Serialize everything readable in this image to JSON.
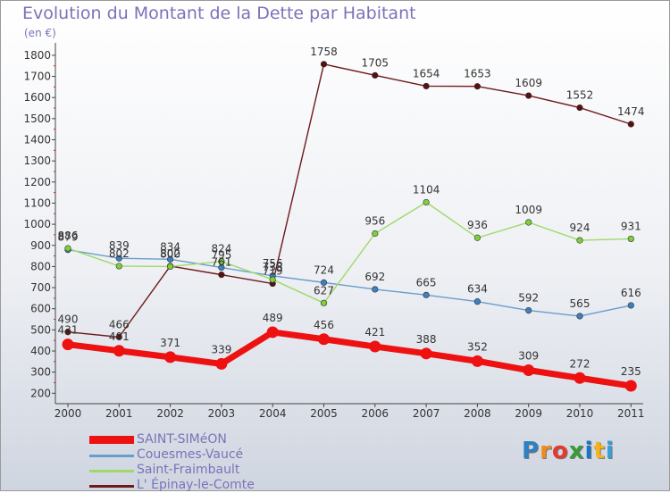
{
  "title": "Evolution du Montant de la Dette par Habitant",
  "unit": "(en €)",
  "logo": {
    "text": "Proxiti",
    "letters": [
      "P",
      "r",
      "o",
      "x",
      "i",
      "t",
      "i"
    ],
    "colors": [
      "#2f7fc1",
      "#f08a1e",
      "#e23b2e",
      "#3a9a3a",
      "#1a74c8",
      "#f3b31c",
      "#35a0d8"
    ]
  },
  "chart_data": {
    "type": "line",
    "x": [
      "2000",
      "2001",
      "2002",
      "2003",
      "2004",
      "2005",
      "2006",
      "2007",
      "2008",
      "2009",
      "2010",
      "2011"
    ],
    "y_ticks": [
      "200",
      "300",
      "400",
      "500",
      "600",
      "700",
      "800",
      "900",
      "1000",
      "1100",
      "1200",
      "1300",
      "1400",
      "1500",
      "1600",
      "1700",
      "1800"
    ],
    "ylim": [
      200,
      1800
    ],
    "grid": false,
    "series": [
      {
        "name": "L' Épinay-le-Comte",
        "color": "#6e1a1a",
        "point_color": "#5a0f0f",
        "values": [
          490,
          466,
          802,
          761,
          719,
          1758,
          1705,
          1654,
          1653,
          1609,
          1552,
          1474
        ],
        "labels": [
          "490",
          "466",
          "802",
          "761",
          "719",
          "1758",
          "1705",
          "1654",
          "1653",
          "1609",
          "1552",
          "1474"
        ]
      },
      {
        "name": "Couesmes-Vaucé",
        "color": "#6a9ccd",
        "point_color": "#3e7fc0",
        "values": [
          879,
          839,
          834,
          795,
          756,
          724,
          692,
          665,
          634,
          592,
          565,
          616
        ],
        "labels": [
          "879",
          "839",
          "834",
          "795",
          "756",
          "724",
          "692",
          "665",
          "634",
          "592",
          "565",
          "616"
        ]
      },
      {
        "name": "Saint-Fraimbault",
        "color": "#9fd96a",
        "point_color": "#7ecf3a",
        "values": [
          886,
          802,
          800,
          824,
          738,
          627,
          956,
          1104,
          936,
          1009,
          924,
          931
        ],
        "labels": [
          "886",
          "802",
          "800",
          "824",
          "738",
          "627",
          "956",
          "1104",
          "936",
          "1009",
          "924",
          "931"
        ]
      },
      {
        "name": "SAINT-SIMéON",
        "color": "#ee1111",
        "point_color": "#ee1111",
        "values": [
          431,
          401,
          371,
          339,
          489,
          456,
          421,
          388,
          352,
          309,
          272,
          235
        ],
        "labels": [
          "431",
          "401",
          "371",
          "339",
          "489",
          "456",
          "421",
          "388",
          "352",
          "309",
          "272",
          "235"
        ]
      }
    ],
    "legend_order": [
      3,
      1,
      2,
      0
    ]
  }
}
